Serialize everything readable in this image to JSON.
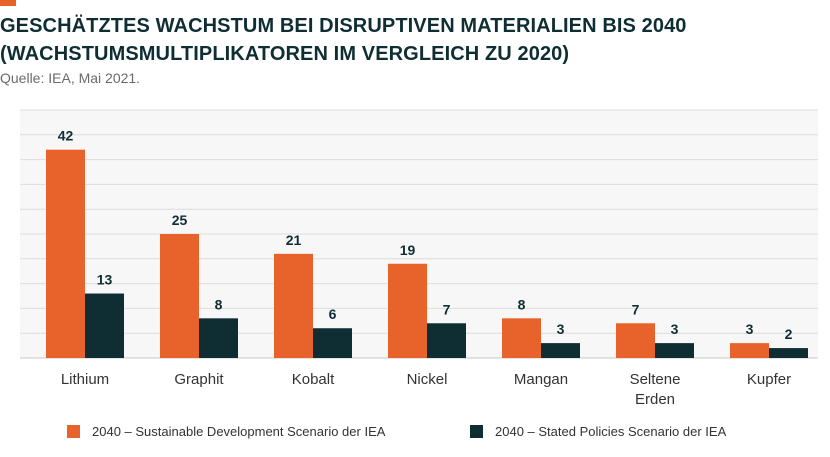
{
  "header": {
    "title_line1": "GESCHÄTZTES WACHSTUM BEI DISRUPTIVEN MATERIALIEN BIS 2040",
    "title_line2": "(WACHSTUMSMULTIPLIKATOREN IM VERGLEICH ZU 2020)",
    "source": "Quelle: IEA, Mai 2021."
  },
  "colors": {
    "accent": "#e8632b",
    "sds": "#e8632b",
    "sps": "#0f2e33",
    "grid": "#dcdcdc",
    "plot_bg": "#f7f7f7"
  },
  "chart_data": {
    "type": "bar",
    "categories": [
      [
        "Lithium"
      ],
      [
        "Graphit"
      ],
      [
        "Kobalt"
      ],
      [
        "Nickel"
      ],
      [
        "Mangan"
      ],
      [
        "Seltene",
        "Erden"
      ],
      [
        "Kupfer"
      ]
    ],
    "series": [
      {
        "name": "2040 – Sustainable Development Scenario der IEA",
        "values": [
          42,
          25,
          21,
          19,
          8,
          7,
          3
        ]
      },
      {
        "name": "2040 – Stated Policies Scenario der IEA",
        "values": [
          13,
          8,
          6,
          7,
          3,
          3,
          2
        ]
      }
    ],
    "ylim": [
      0,
      50
    ],
    "grid": true,
    "legend_position": "bottom"
  }
}
